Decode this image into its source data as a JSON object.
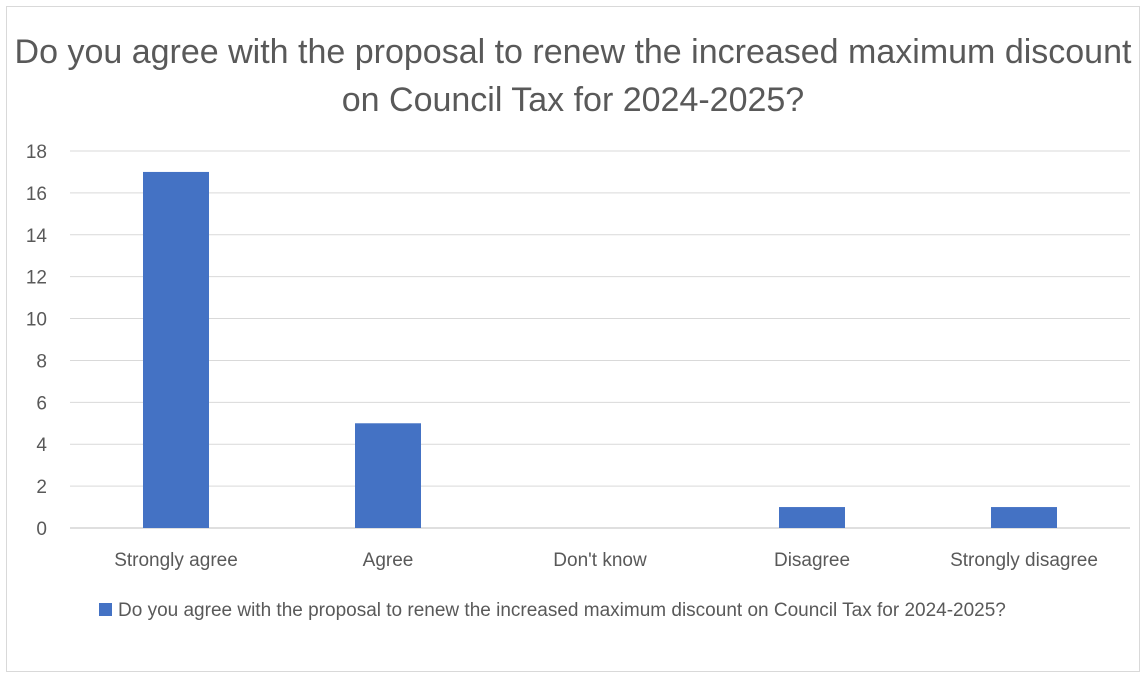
{
  "chart_data": {
    "type": "bar",
    "title": "Do you agree with the proposal to renew the increased maximum discount on Council Tax for 2024-2025?",
    "categories": [
      "Strongly agree",
      "Agree",
      "Don't know",
      "Disagree",
      "Strongly disagree"
    ],
    "series": [
      {
        "name": "Do you agree with the proposal to renew the increased maximum discount on Council Tax for 2024-2025?",
        "values": [
          17,
          5,
          0,
          1,
          1
        ],
        "color": "#4472c4"
      }
    ],
    "ylim": [
      0,
      18
    ],
    "yticks": [
      "0",
      "2",
      "4",
      "6",
      "8",
      "10",
      "12",
      "14",
      "16",
      "18"
    ],
    "grid": true,
    "legend_position": "bottom"
  }
}
